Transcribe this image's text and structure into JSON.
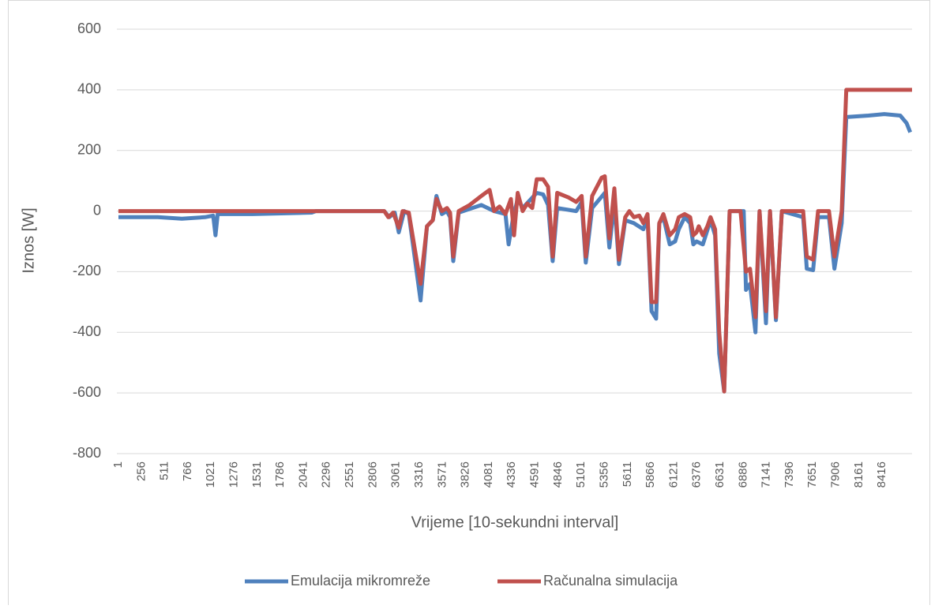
{
  "chart_data": {
    "type": "line",
    "x_label": "Vrijeme [10-sekundni interval]",
    "y_label": "Iznos [W]",
    "xlim": [
      1,
      8745
    ],
    "xticks": [
      1,
      256,
      511,
      766,
      1021,
      1276,
      1531,
      1786,
      2041,
      2296,
      2551,
      2806,
      3061,
      3316,
      3571,
      3826,
      4081,
      4336,
      4591,
      4846,
      5101,
      5356,
      5611,
      5866,
      6121,
      6376,
      6631,
      6886,
      7141,
      7396,
      7651,
      7906,
      8161,
      8416
    ],
    "ylim": [
      -800,
      600
    ],
    "yticks": [
      -800,
      -600,
      -400,
      -200,
      0,
      200,
      400,
      600
    ],
    "grid": true,
    "legend": "bottom",
    "series": [
      {
        "name": "Emulacija mikromreže",
        "color": "#4f81bd",
        "x": [
          1,
          435,
          700,
          955,
          1045,
          1070,
          1095,
          1480,
          2130,
          2175,
          2930,
          2985,
          3045,
          3090,
          3150,
          3200,
          3330,
          3400,
          3465,
          3505,
          3565,
          3620,
          3655,
          3690,
          3750,
          4000,
          4140,
          4265,
          4300,
          4350,
          4400,
          4455,
          4610,
          4680,
          4735,
          4785,
          4835,
          5045,
          5105,
          5150,
          5220,
          5360,
          5410,
          5465,
          5515,
          5585,
          5680,
          5785,
          5830,
          5875,
          5925,
          5960,
          6005,
          6075,
          6135,
          6175,
          6240,
          6300,
          6335,
          6370,
          6440,
          6525,
          6575,
          6620,
          6675,
          6735,
          6890,
          6915,
          6960,
          7020,
          7065,
          7135,
          7180,
          7245,
          7310,
          7545,
          7585,
          7655,
          7710,
          7830,
          7890,
          7970,
          8020,
          8265,
          8440,
          8615,
          8685,
          8725
        ],
        "values": [
          -20,
          -20,
          -25,
          -20,
          -15,
          -80,
          -10,
          -10,
          -5,
          0,
          0,
          -20,
          -5,
          -70,
          0,
          -10,
          -295,
          -50,
          -30,
          50,
          -10,
          0,
          -20,
          -165,
          -5,
          20,
          0,
          -10,
          -110,
          -20,
          40,
          10,
          60,
          55,
          20,
          -165,
          10,
          0,
          30,
          -170,
          10,
          60,
          -120,
          30,
          -175,
          -30,
          -40,
          -60,
          -20,
          -330,
          -355,
          -40,
          -20,
          -110,
          -100,
          -60,
          -20,
          -40,
          -110,
          -100,
          -110,
          -30,
          -80,
          -470,
          -595,
          0,
          0,
          -260,
          -240,
          -400,
          0,
          -370,
          0,
          -360,
          0,
          -20,
          -190,
          -195,
          -20,
          -20,
          -190,
          -40,
          310,
          315,
          320,
          315,
          290,
          260
        ]
      },
      {
        "name": "Računalna simulacija",
        "color": "#c0504d",
        "x": [
          1,
          2930,
          2975,
          3028,
          3090,
          3132,
          3200,
          3330,
          3400,
          3465,
          3505,
          3565,
          3620,
          3655,
          3690,
          3750,
          3870,
          4000,
          4090,
          4140,
          4200,
          4265,
          4325,
          4360,
          4400,
          4455,
          4505,
          4560,
          4610,
          4680,
          4735,
          4785,
          4835,
          4960,
          5045,
          5105,
          5150,
          5220,
          5325,
          5360,
          5410,
          5465,
          5515,
          5585,
          5630,
          5680,
          5740,
          5785,
          5830,
          5875,
          5925,
          5960,
          6005,
          6075,
          6135,
          6175,
          6240,
          6300,
          6335,
          6370,
          6395,
          6440,
          6490,
          6525,
          6575,
          6620,
          6675,
          6735,
          6855,
          6915,
          6960,
          7020,
          7065,
          7135,
          7180,
          7245,
          7310,
          7545,
          7585,
          7655,
          7710,
          7830,
          7890,
          7970,
          8020,
          8745
        ],
        "values": [
          0,
          0,
          -20,
          -5,
          -55,
          0,
          -5,
          -240,
          -50,
          -30,
          40,
          0,
          10,
          -5,
          -150,
          0,
          20,
          50,
          70,
          0,
          15,
          -10,
          40,
          -80,
          60,
          0,
          25,
          10,
          105,
          105,
          80,
          -150,
          60,
          45,
          30,
          50,
          -150,
          50,
          110,
          115,
          -90,
          75,
          -160,
          -20,
          0,
          -20,
          -15,
          -40,
          -10,
          -300,
          -300,
          -40,
          -10,
          -80,
          -60,
          -20,
          -10,
          -20,
          -80,
          -70,
          -50,
          -80,
          -50,
          -20,
          -60,
          -400,
          -595,
          0,
          0,
          -200,
          -190,
          -350,
          0,
          -330,
          0,
          -350,
          0,
          0,
          -150,
          -160,
          0,
          0,
          -150,
          0,
          400,
          400
        ]
      }
    ]
  }
}
